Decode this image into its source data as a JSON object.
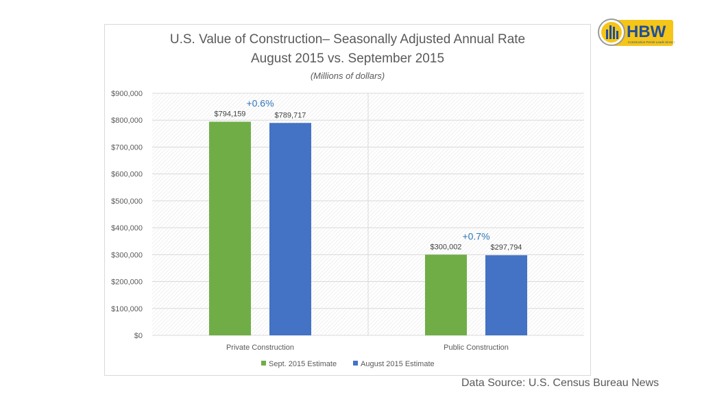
{
  "logo": {
    "text": "HBW",
    "tagline": "Construction Permit Leads Since 1992"
  },
  "source": "Data Source: U.S. Census Bureau News",
  "chart_data": {
    "type": "bar",
    "title": "U.S. Value of Construction– Seasonally Adjusted Annual Rate",
    "subtitle": "August 2015 vs. September 2015",
    "unit_note": "(Millions of dollars)",
    "categories": [
      "Private Construction",
      "Public Construction"
    ],
    "series": [
      {
        "name": "Sept. 2015 Estimate",
        "values": [
          794159,
          300002
        ],
        "labels": [
          "$794,159",
          "$300,002"
        ],
        "color": "#70ad47"
      },
      {
        "name": "August 2015 Estimate",
        "values": [
          789717,
          297794
        ],
        "labels": [
          "$789,717",
          "$297,794"
        ],
        "color": "#4472c4"
      }
    ],
    "annotations": [
      "+0.6%",
      "+0.7%"
    ],
    "annotation_color": "#2e75b6",
    "ylim": [
      0,
      900000
    ],
    "yticks": [
      "$0",
      "$100,000",
      "$200,000",
      "$300,000",
      "$400,000",
      "$500,000",
      "$600,000",
      "$700,000",
      "$800,000",
      "$900,000"
    ],
    "grid": true,
    "legend": "bottom"
  }
}
